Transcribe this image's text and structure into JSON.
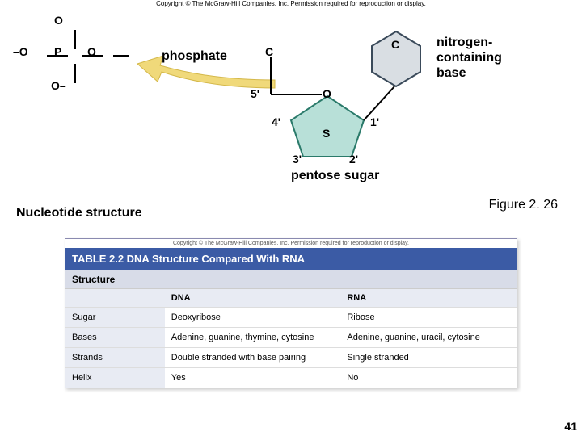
{
  "copyright_top": "Copyright © The McGraw-Hill Companies, Inc. Permission required for reproduction or display.",
  "copyright_table": "Copyright © The McGraw-Hill Companies, Inc. Permission required for reproduction or display.",
  "phosphate": {
    "label": "phosphate",
    "O_top": "O",
    "O_left": "–O",
    "P": "P",
    "O_right": "O",
    "O_bottom": "O–",
    "color": "#000000"
  },
  "base": {
    "label": "nitrogen-\ncontaining\nbase",
    "C1": "C",
    "C2": "C",
    "fill": "#d9dee3",
    "stroke": "#3a4a5a"
  },
  "sugar": {
    "label": "pentose sugar",
    "S": "S",
    "O": "O",
    "p1": "1'",
    "p2": "2'",
    "p3": "3'",
    "p4": "4'",
    "p5": "5'",
    "fill": "#b8e0d8",
    "stroke": "#2a7a6a"
  },
  "arrow": {
    "fill": "#f0d97a",
    "stroke": "#d4b84a"
  },
  "titles": {
    "nucleotide": "Nucleotide structure",
    "figure": "Figure 2. 26"
  },
  "table": {
    "title": "TABLE 2.2   DNA Structure Compared With RNA",
    "subtitle": "Structure",
    "headers": [
      "",
      "DNA",
      "RNA"
    ],
    "rows": [
      [
        "Sugar",
        "Deoxyribose",
        "Ribose"
      ],
      [
        "Bases",
        "Adenine, guanine, thymine, cytosine",
        "Adenine, guanine, uracil, cytosine"
      ],
      [
        "Strands",
        "Double stranded with base pairing",
        "Single stranded"
      ],
      [
        "Helix",
        "Yes",
        "No"
      ]
    ],
    "header_bg": "#3b5ba5",
    "header_fg": "#ffffff",
    "sub_bg": "#d8dce8",
    "th_bg": "#e8ebf3"
  },
  "page_number": "41"
}
